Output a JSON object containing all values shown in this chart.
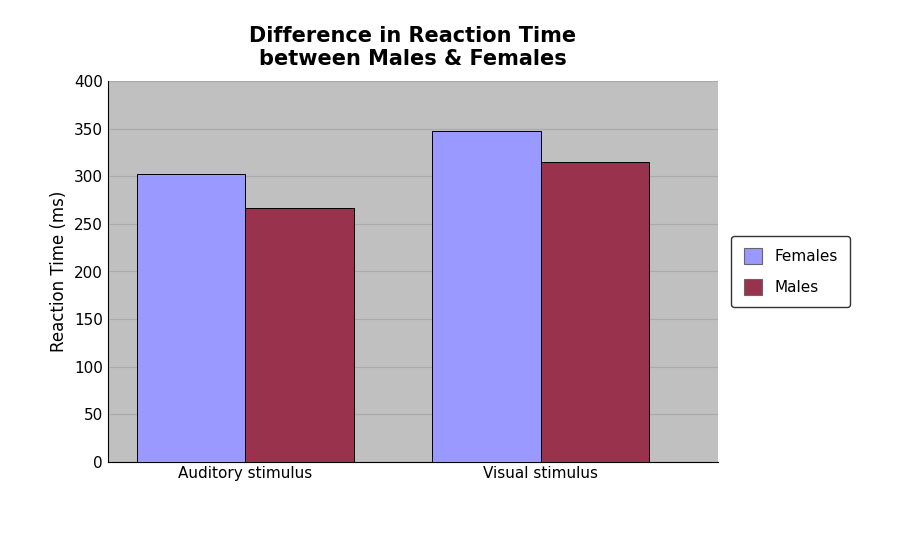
{
  "title_line1": "Difference in Reaction Time",
  "title_line2": "between Males & Females",
  "categories": [
    "Auditory stimulus",
    "Visual stimulus"
  ],
  "females_values": [
    303,
    348
  ],
  "males_values": [
    267,
    315
  ],
  "females_color": "#9999FF",
  "males_color": "#99334D",
  "ylabel": "Reaction Time (ms)",
  "ylim": [
    0,
    400
  ],
  "yticks": [
    0,
    50,
    100,
    150,
    200,
    250,
    300,
    350,
    400
  ],
  "bar_width": 0.55,
  "group_positions": [
    0.9,
    2.4
  ],
  "xlim": [
    0.2,
    3.3
  ],
  "background_color": "#C0C0C0",
  "figure_background": "#FFFFFF",
  "legend_labels": [
    "Females",
    "Males"
  ],
  "title_fontsize": 15,
  "axis_label_fontsize": 12,
  "tick_fontsize": 11,
  "legend_fontsize": 11,
  "grid_color": "#AAAAAA",
  "spine_color": "#000000"
}
